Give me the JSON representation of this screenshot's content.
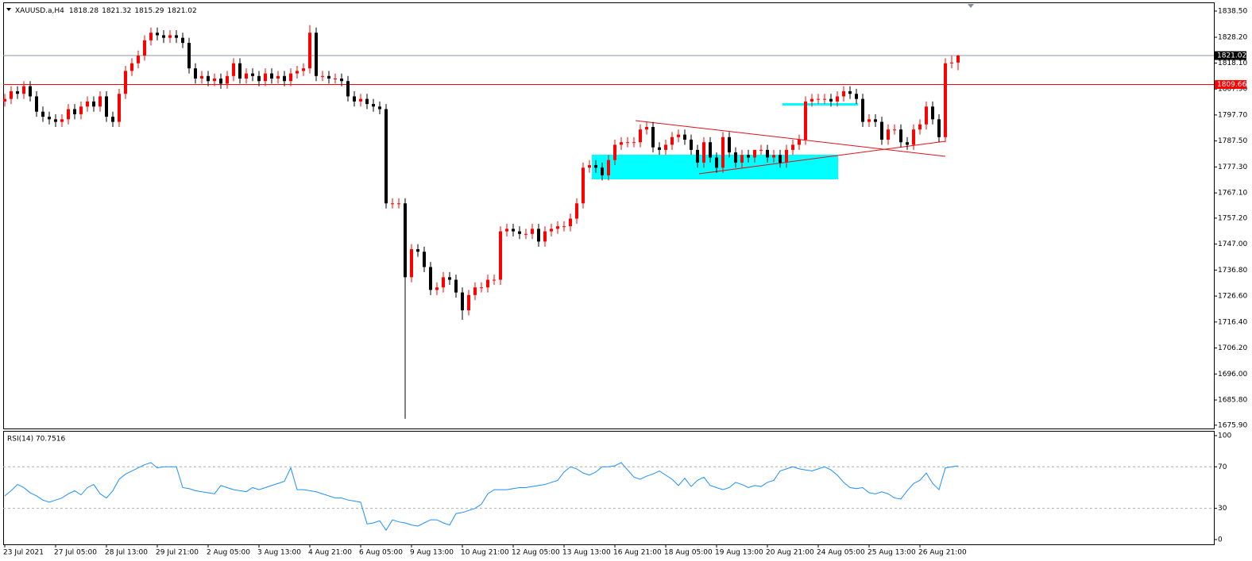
{
  "chart_data": [
    {
      "type": "candlestick",
      "title": "XAUUSD.a,H4",
      "categories": [
        "23 Jul 2021",
        null,
        null,
        null,
        null,
        null,
        null,
        null,
        "27 Jul 05:00",
        null,
        null,
        null,
        null,
        null,
        null,
        null,
        "28 Jul 13:00",
        null,
        null,
        null,
        null,
        null,
        null,
        null,
        "29 Jul 21:00",
        null,
        null,
        null,
        null,
        null,
        null,
        null,
        "2 Aug 05:00",
        null,
        null,
        null,
        null,
        null,
        null,
        null,
        "3 Aug 13:00",
        null,
        null,
        null,
        null,
        null,
        null,
        null,
        "4 Aug 21:00",
        null,
        null,
        null,
        null,
        null,
        null,
        null,
        "6 Aug 05:00",
        null,
        null,
        null,
        null,
        null,
        null,
        null,
        "9 Aug 13:00",
        null,
        null,
        null,
        null,
        null,
        null,
        null,
        "10 Aug 21:00",
        null,
        null,
        null,
        null,
        null,
        null,
        null,
        "12 Aug 05:00",
        null,
        null,
        null,
        null,
        null,
        null,
        null,
        "13 Aug 13:00",
        null,
        null,
        null,
        null,
        null,
        null,
        null,
        "16 Aug 21:00",
        null,
        null,
        null,
        null,
        null,
        null,
        null,
        "18 Aug 05:00",
        null,
        null,
        null,
        null,
        null,
        null,
        null,
        "19 Aug 13:00",
        null,
        null,
        null,
        null,
        null,
        null,
        null,
        "20 Aug 21:00",
        null,
        null,
        null,
        null,
        null,
        null,
        null,
        "24 Aug 05:00",
        null,
        null,
        null,
        null,
        null,
        null,
        null,
        "25 Aug 13:00",
        null,
        null,
        null,
        null,
        null,
        null,
        null,
        "26 Aug 21:00",
        null,
        null,
        null,
        null,
        null,
        null
      ],
      "open": [
        1803,
        1804,
        1807,
        1806,
        1809,
        1805,
        1799,
        1797,
        1796,
        1795,
        1796,
        1800,
        1798,
        1801,
        1803,
        1801,
        1805,
        1797,
        1795,
        1806,
        1815,
        1818,
        1821,
        1827,
        1830,
        1829,
        1828,
        1829,
        1828,
        1826,
        1816,
        1812,
        1813,
        1811,
        1812,
        1810,
        1813,
        1818,
        1812,
        1814,
        1813,
        1811,
        1814,
        1812,
        1813,
        1811,
        1814,
        1815,
        1816,
        1830,
        1813,
        1813,
        1812,
        1812,
        1811,
        1805,
        1803,
        1804,
        1802,
        1801,
        1800,
        1763,
        1763,
        1763,
        1734,
        1745,
        1744,
        1738,
        1729,
        1730,
        1734,
        1733,
        1728,
        1721,
        1727,
        1730,
        1730,
        1733,
        1733,
        1752,
        1753,
        1752,
        1751,
        1751,
        1753,
        1748,
        1752,
        1753,
        1754,
        1754,
        1757,
        1763,
        1777,
        1778,
        1777,
        1774,
        1780,
        1786,
        1787,
        1787,
        1787,
        1792,
        1793,
        1785,
        1784,
        1786,
        1789,
        1790,
        1788,
        1784,
        1779,
        1787,
        1781,
        1777,
        1789,
        1783,
        1779,
        1782,
        1781,
        1784,
        1784,
        1781,
        1782,
        1779,
        1784,
        1786,
        1788,
        1803,
        1804,
        1804,
        1804,
        1803,
        1805,
        1807,
        1806,
        1804,
        1795,
        1796,
        1795,
        1788,
        1792,
        1792,
        1787,
        1786,
        1792,
        1794,
        1801,
        1796,
        1789,
        1818,
        1818.28
      ],
      "high": [
        1806,
        1809,
        1809,
        1811,
        1811,
        1807,
        1801,
        1799,
        1798,
        1798,
        1802,
        1802,
        1803,
        1805,
        1805,
        1807,
        1807,
        1799,
        1808,
        1817,
        1820,
        1823,
        1829,
        1832,
        1832,
        1831,
        1831,
        1831,
        1830,
        1828,
        1818,
        1815,
        1815,
        1814,
        1814,
        1815,
        1820,
        1820,
        1816,
        1816,
        1815,
        1816,
        1816,
        1815,
        1815,
        1816,
        1817,
        1818,
        1833,
        1832,
        1815,
        1815,
        1814,
        1814,
        1813,
        1807,
        1806,
        1806,
        1804,
        1803,
        1802,
        1765,
        1765,
        1765,
        1747,
        1747,
        1746,
        1740,
        1732,
        1736,
        1736,
        1735,
        1730,
        1729,
        1732,
        1732,
        1735,
        1735,
        1754,
        1755,
        1755,
        1754,
        1753,
        1755,
        1755,
        1754,
        1755,
        1756,
        1756,
        1759,
        1765,
        1779,
        1780,
        1780,
        1779,
        1782,
        1788,
        1789,
        1789,
        1789,
        1794,
        1795,
        1795,
        1787,
        1788,
        1791,
        1792,
        1792,
        1790,
        1786,
        1789,
        1789,
        1783,
        1791,
        1791,
        1785,
        1784,
        1784,
        1783,
        1786,
        1786,
        1784,
        1784,
        1786,
        1788,
        1790,
        1805,
        1806,
        1806,
        1806,
        1806,
        1807,
        1809,
        1809,
        1808,
        1806,
        1798,
        1798,
        1797,
        1794,
        1794,
        1794,
        1789,
        1794,
        1796,
        1803,
        1803,
        1798,
        1820,
        1821,
        1821.32
      ],
      "low": [
        1801,
        1802,
        1804,
        1804,
        1803,
        1797,
        1795,
        1794,
        1793,
        1793,
        1794,
        1796,
        1796,
        1799,
        1799,
        1799,
        1795,
        1793,
        1793,
        1804,
        1813,
        1816,
        1819,
        1825,
        1827,
        1826,
        1826,
        1826,
        1824,
        1814,
        1810,
        1810,
        1809,
        1809,
        1808,
        1808,
        1811,
        1810,
        1810,
        1811,
        1809,
        1809,
        1810,
        1810,
        1809,
        1809,
        1812,
        1813,
        1814,
        1811,
        1811,
        1810,
        1810,
        1809,
        1803,
        1801,
        1801,
        1800,
        1799,
        1798,
        1761,
        1761,
        1761,
        1678.4,
        1732,
        1742,
        1736,
        1727,
        1727,
        1728,
        1731,
        1726,
        1717.3,
        1719,
        1725,
        1728,
        1728,
        1731,
        1731,
        1750,
        1750,
        1749,
        1749,
        1749,
        1746,
        1746,
        1750,
        1751,
        1752,
        1752,
        1755,
        1761,
        1775,
        1775,
        1772,
        1772,
        1778,
        1784,
        1785,
        1785,
        1785,
        1790,
        1783,
        1782,
        1782,
        1784,
        1787,
        1786,
        1782,
        1777,
        1777,
        1779,
        1775,
        1775,
        1781,
        1777,
        1777,
        1779,
        1779,
        1782,
        1779,
        1779,
        1777,
        1777,
        1782,
        1784,
        1786,
        1801,
        1802,
        1802,
        1801,
        1801,
        1803,
        1804,
        1802,
        1793,
        1793,
        1793,
        1786,
        1786,
        1790,
        1785,
        1784,
        1784,
        1790,
        1792,
        1794,
        1787,
        1787,
        1816,
        1815.29
      ],
      "close": [
        1804,
        1807,
        1806,
        1809,
        1805,
        1799,
        1797,
        1796,
        1795,
        1796,
        1800,
        1798,
        1801,
        1803,
        1801,
        1805,
        1797,
        1795,
        1806,
        1815,
        1818,
        1821,
        1827,
        1830,
        1829,
        1828,
        1829,
        1828,
        1826,
        1816,
        1812,
        1813,
        1811,
        1812,
        1810,
        1813,
        1818,
        1812,
        1814,
        1813,
        1811,
        1814,
        1812,
        1813,
        1811,
        1814,
        1815,
        1816,
        1830,
        1813,
        1813,
        1812,
        1812,
        1811,
        1805,
        1803,
        1804,
        1802,
        1801,
        1800,
        1763,
        1763,
        1763,
        1734,
        1745,
        1744,
        1738,
        1729,
        1730,
        1734,
        1733,
        1728,
        1721,
        1727,
        1730,
        1730,
        1733,
        1733,
        1752,
        1753,
        1752,
        1751,
        1751,
        1753,
        1748,
        1752,
        1753,
        1754,
        1754,
        1757,
        1763,
        1777,
        1778,
        1777,
        1774,
        1780,
        1786,
        1787,
        1787,
        1787,
        1792,
        1793,
        1785,
        1784,
        1786,
        1789,
        1790,
        1788,
        1784,
        1779,
        1787,
        1781,
        1777,
        1789,
        1783,
        1779,
        1782,
        1781,
        1784,
        1784,
        1781,
        1782,
        1779,
        1784,
        1786,
        1788,
        1803,
        1804,
        1804,
        1804,
        1803,
        1805,
        1807,
        1806,
        1804,
        1795,
        1796,
        1795,
        1788,
        1792,
        1792,
        1787,
        1786,
        1792,
        1794,
        1801,
        1796,
        1789,
        1818,
        1818.28,
        1821.02
      ],
      "up_color": "#ff0000",
      "down_color": "#000000",
      "ylim": [
        1674.6,
        1841.6
      ],
      "yticks": [
        {
          "value": 1838.5,
          "label": "1838.50"
        },
        {
          "value": 1828.2,
          "label": "1828.20"
        },
        {
          "value": 1818.1,
          "label": "1818.10"
        },
        {
          "value": 1807.9,
          "label": "1807.90"
        },
        {
          "value": 1797.7,
          "label": "1797.70"
        },
        {
          "value": 1787.5,
          "label": "1787.50"
        },
        {
          "value": 1777.3,
          "label": "1777.30"
        },
        {
          "value": 1767.1,
          "label": "1767.10"
        },
        {
          "value": 1757.2,
          "label": "1757.20"
        },
        {
          "value": 1747,
          "label": "1747.00"
        },
        {
          "value": 1736.8,
          "label": "1736.80"
        },
        {
          "value": 1726.6,
          "label": "1726.60"
        },
        {
          "value": 1716.4,
          "label": "1716.40"
        },
        {
          "value": 1706.2,
          "label": "1706.20"
        },
        {
          "value": 1696,
          "label": "1696.00"
        },
        {
          "value": 1685.8,
          "label": "1685.80"
        },
        {
          "value": 1675.9,
          "label": "1675.90"
        }
      ],
      "price_lines": [
        {
          "value": 1821.02,
          "label": "1821.02",
          "color": "#8797a8",
          "tag_color": "#000000"
        },
        {
          "value": 1809.66,
          "label": "1809.66",
          "color": "#ff0000",
          "tag_color": "#ff0000"
        }
      ]
    },
    {
      "type": "line",
      "title": "RSI(14) 70.7516",
      "values": [
        42,
        47,
        53,
        50,
        45,
        42,
        38,
        36,
        38,
        40,
        44,
        47,
        43,
        50,
        53,
        44,
        40,
        47,
        58,
        63,
        66,
        69,
        72,
        74,
        69,
        70,
        70,
        70,
        50,
        49,
        47,
        46,
        45,
        44,
        52,
        50,
        48,
        47,
        46,
        50,
        48,
        50,
        52,
        54,
        56,
        69,
        48,
        48,
        47,
        46,
        44,
        42,
        40,
        40,
        38,
        37,
        36,
        15,
        16,
        18,
        9,
        19,
        17,
        16,
        14,
        13,
        16,
        19,
        19,
        16,
        14,
        25,
        26,
        28,
        30,
        34,
        44,
        48,
        48,
        48,
        49,
        50,
        50,
        51,
        52,
        53,
        55,
        57,
        65,
        70,
        68,
        64,
        62,
        65,
        70,
        70,
        71,
        74,
        67,
        60,
        58,
        61,
        63,
        66,
        62,
        58,
        52,
        59,
        51,
        57,
        60,
        52,
        50,
        48,
        50,
        55,
        53,
        50,
        52,
        51,
        55,
        57,
        66,
        68,
        70,
        68,
        67,
        66,
        68,
        70,
        67,
        62,
        55,
        50,
        49,
        50,
        45,
        44,
        46,
        44,
        40,
        39,
        47,
        54,
        57,
        64,
        54,
        48,
        69,
        70,
        70.7516
      ],
      "color": "#1e90ff",
      "ylim": [
        -4.6,
        103.8
      ],
      "yticks": [
        0,
        30,
        70,
        100
      ],
      "levels": [
        30,
        70
      ]
    }
  ]
}
